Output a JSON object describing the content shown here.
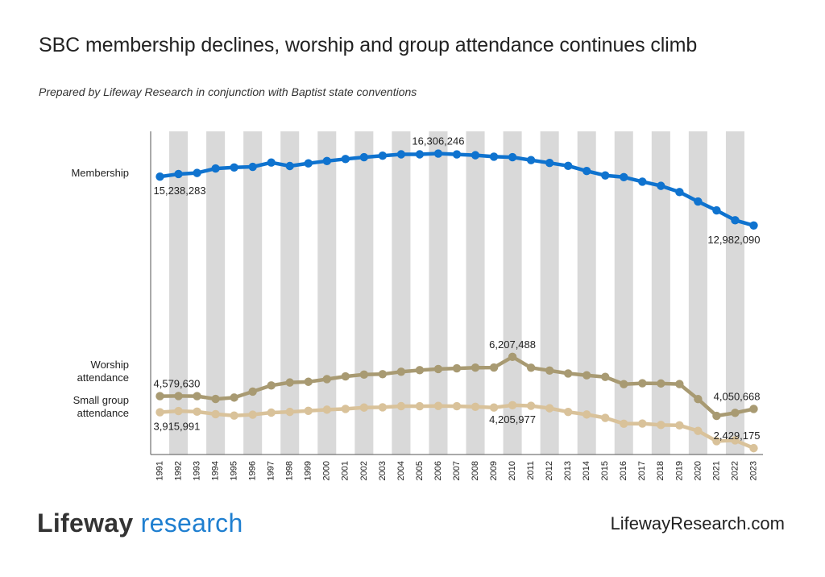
{
  "header": {
    "title": "SBC membership declines, worship and group attendance continues climb",
    "subtitle": "Prepared by Lifeway Research in conjunction with Baptist state conventions"
  },
  "footer": {
    "logo_word1": "Lifeway",
    "logo_word2": " research",
    "website": "LifewayResearch.com"
  },
  "chart_data": {
    "type": "line",
    "title": "SBC membership declines, worship and group attendance continues climb",
    "grid": "alternating vertical bands",
    "legend": "series labels on left",
    "x": [
      "1991",
      "1992",
      "1993",
      "1994",
      "1995",
      "1996",
      "1997",
      "1998",
      "1999",
      "2000",
      "2001",
      "2002",
      "2003",
      "2004",
      "2005",
      "2006",
      "2007",
      "2008",
      "2009",
      "2010",
      "2011",
      "2012",
      "2013",
      "2014",
      "2015",
      "2016",
      "2017",
      "2018",
      "2019",
      "2020",
      "2021",
      "2022",
      "2023"
    ],
    "series": [
      {
        "name": "Membership",
        "color": "#0f73cf",
        "values": [
          15238283,
          15358000,
          15409000,
          15614000,
          15664000,
          15692000,
          15891000,
          15730000,
          15852000,
          15960000,
          16052000,
          16137000,
          16206000,
          16270000,
          16270000,
          16306246,
          16266000,
          16228000,
          16160000,
          16136000,
          16003000,
          15872000,
          15736000,
          15500000,
          15295000,
          15217000,
          15006000,
          14813000,
          14526000,
          14089000,
          13680000,
          13223000,
          12982090
        ],
        "labels": [
          {
            "index": 0,
            "text": "15,238,283",
            "pos": "below"
          },
          {
            "index": 15,
            "text": "16,306,246",
            "pos": "above"
          },
          {
            "index": 32,
            "text": "12,982,090",
            "pos": "below"
          }
        ]
      },
      {
        "name": "Worship attendance",
        "color": "#a89a72",
        "values": [
          4579630,
          4585000,
          4580000,
          4464000,
          4521000,
          4770000,
          5022000,
          5146000,
          5175000,
          5284000,
          5398000,
          5472000,
          5490000,
          5591000,
          5655000,
          5703000,
          5731000,
          5761000,
          5764000,
          6207488,
          5757000,
          5640000,
          5519000,
          5444000,
          5376000,
          5077000,
          5113000,
          5104000,
          5081000,
          4460000,
          3766000,
          3890000,
          4050668
        ],
        "labels": [
          {
            "index": 0,
            "text": "4,579,630",
            "pos": "above"
          },
          {
            "index": 19,
            "text": "6,207,488",
            "pos": "above"
          },
          {
            "index": 32,
            "text": "4,050,668",
            "pos": "above"
          }
        ]
      },
      {
        "name": "Small group attendance",
        "color": "#d9c29a",
        "values": [
          3915991,
          3963000,
          3938000,
          3836000,
          3776000,
          3816000,
          3900000,
          3929000,
          3974000,
          4021000,
          4052000,
          4108000,
          4120000,
          4167000,
          4163000,
          4176000,
          4165000,
          4141000,
          4110000,
          4205977,
          4180000,
          4079000,
          3927000,
          3821000,
          3682000,
          3441000,
          3447000,
          3388000,
          3373000,
          3144000,
          2720000,
          2752000,
          2429175
        ],
        "labels": [
          {
            "index": 0,
            "text": "3,915,991",
            "pos": "below"
          },
          {
            "index": 19,
            "text": "4,205,977",
            "pos": "below"
          },
          {
            "index": 32,
            "text": "2,429,175",
            "pos": "above"
          }
        ]
      }
    ]
  }
}
